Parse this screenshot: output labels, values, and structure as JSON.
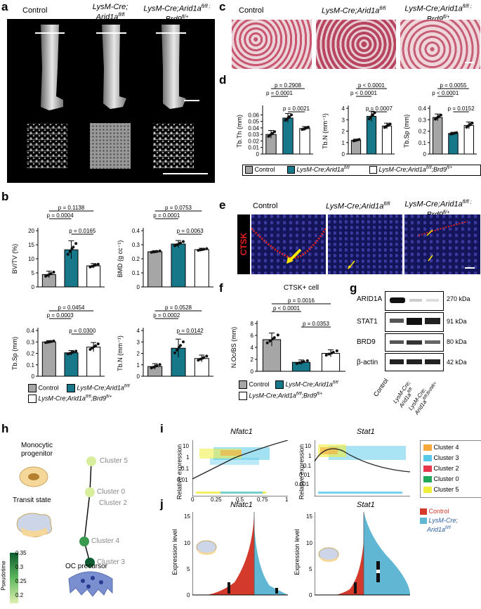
{
  "panels": {
    "a": "a",
    "b": "b",
    "c": "c",
    "d": "d",
    "e": "e",
    "f": "f",
    "g": "g",
    "h": "h",
    "i": "i",
    "j": "j"
  },
  "panel_a": {
    "groups": [
      "Control",
      "LysM-Cre; Arid1a",
      "LysM-Cre;Arid1a"
    ],
    "sup": [
      "fl/fl",
      "fl/fl ;",
      "fl/+"
    ],
    "brd": "Brd9"
  },
  "panel_c": {
    "groups": [
      "Control",
      "LysM-Cre;Arid1a",
      "LysM-Cre;Arid1a"
    ],
    "sup": [
      "fl/fl",
      "fl/fl ;",
      "fl/+"
    ],
    "brd": "Brd9"
  },
  "panel_e": {
    "groups": [
      "Control",
      "LysM-Cre;Arid1a",
      "LysM-Cre;Arid1a"
    ],
    "sup": [
      "fl/fl",
      "fl/fl ;",
      "fl/+"
    ],
    "brd": "Brd9",
    "stain": "CTSK"
  },
  "legend_bd": {
    "control": "Control",
    "ko": "LysM-Cre;Arid1a",
    "ko_sup": "fl/fl",
    "dko": "LysM-Cre;Arid1a",
    "dko_sup1": "fl/fl",
    "dko_mid": ";Brd9",
    "dko_sup2": "fl/+"
  },
  "colors": {
    "control": "#a6a6a6",
    "ko": "#17788a",
    "dko": "#ffffff",
    "pseudotime_high": "#0d5c2f",
    "pseudotime_low": "#dff0b0"
  },
  "chart_data": [
    {
      "id": "b-bvtv",
      "type": "bar",
      "categories": [
        "Control",
        "LysM-Cre;Arid1a fl/fl",
        "LysM-Cre;Arid1a fl/fl;Brd9 fl/+"
      ],
      "values": [
        4.4,
        13.2,
        7.5
      ],
      "errors": [
        1.2,
        3.2,
        0.8
      ],
      "ylabel": "BV/TV (%)",
      "ylim": [
        0,
        20
      ],
      "yticks": [
        0,
        5,
        10,
        15,
        20
      ],
      "pvalues": [
        {
          "from": 0,
          "to": 2,
          "label": "p = 0.1138"
        },
        {
          "from": 0,
          "to": 1,
          "label": "p = 0.0004"
        },
        {
          "from": 1,
          "to": 2,
          "label": "p = 0.0165"
        }
      ]
    },
    {
      "id": "b-bmd",
      "type": "bar",
      "categories": [
        "Control",
        "LysM-Cre;Arid1a fl/fl",
        "LysM-Cre;Arid1a fl/fl;Brd9 fl/+"
      ],
      "values": [
        0.25,
        0.305,
        0.265
      ],
      "errors": [
        0.008,
        0.025,
        0.01
      ],
      "ylabel": "BMD (g cc⁻¹)",
      "ylim": [
        0,
        0.4
      ],
      "yticks": [
        0,
        0.1,
        0.2,
        0.3,
        0.4
      ],
      "pvalues": [
        {
          "from": 0,
          "to": 2,
          "label": "p = 0.0753"
        },
        {
          "from": 0,
          "to": 1,
          "label": "p = 0.0001"
        },
        {
          "from": 1,
          "to": 2,
          "label": "p = 0.0063"
        }
      ]
    },
    {
      "id": "b-tbsp",
      "type": "bar",
      "categories": [
        "Control",
        "LysM-Cre;Arid1a fl/fl",
        "LysM-Cre;Arid1a fl/fl;Brd9 fl/+"
      ],
      "values": [
        0.3,
        0.205,
        0.255
      ],
      "errors": [
        0.012,
        0.02,
        0.04
      ],
      "ylabel": "Tb.Sp (mm)",
      "ylim": [
        0,
        0.4
      ],
      "yticks": [
        0,
        0.1,
        0.2,
        0.3,
        0.4
      ],
      "pvalues": [
        {
          "from": 0,
          "to": 2,
          "label": "p = 0.0454"
        },
        {
          "from": 0,
          "to": 1,
          "label": "p = 0.0003"
        },
        {
          "from": 1,
          "to": 2,
          "label": "p = 0.0300"
        }
      ]
    },
    {
      "id": "b-tbn",
      "type": "bar",
      "categories": [
        "Control",
        "LysM-Cre;Arid1a fl/fl",
        "LysM-Cre;Arid1a fl/fl;Brd9 fl/+"
      ],
      "values": [
        0.85,
        2.45,
        1.55
      ],
      "errors": [
        0.25,
        0.8,
        0.3
      ],
      "ylabel": "Tb.N (mm⁻¹)",
      "ylim": [
        0,
        4
      ],
      "yticks": [
        0,
        1,
        2,
        3,
        4
      ],
      "pvalues": [
        {
          "from": 0,
          "to": 2,
          "label": "p = 0.0528"
        },
        {
          "from": 0,
          "to": 1,
          "label": "p = 0.0002"
        },
        {
          "from": 1,
          "to": 2,
          "label": "p = 0.0142"
        }
      ]
    },
    {
      "id": "d-tbth",
      "type": "bar",
      "categories": [
        "Control",
        "LysM-Cre;Arid1a fl/fl",
        "LysM-Cre;Arid1a fl/fl;Brd9 fl/+"
      ],
      "values": [
        0.03,
        0.055,
        0.039
      ],
      "errors": [
        0.006,
        0.007,
        0.003
      ],
      "ylabel": "Tb.Th (mm)",
      "ylim": [
        0,
        0.07
      ],
      "yticks": [
        0,
        0.01,
        0.02,
        0.03,
        0.04,
        0.05,
        0.06
      ],
      "pvalues": [
        {
          "from": 0,
          "to": 2,
          "label": "p = 0.2908"
        },
        {
          "from": 0,
          "to": 1,
          "label": "p = 0.0001"
        },
        {
          "from": 1,
          "to": 2,
          "label": "p = 0.0021"
        }
      ]
    },
    {
      "id": "d-tbn",
      "type": "bar",
      "categories": [
        "Control",
        "LysM-Cre;Arid1a fl/fl",
        "LysM-Cre;Arid1a fl/fl;Brd9 fl/+"
      ],
      "values": [
        1.2,
        3.3,
        2.45
      ],
      "errors": [
        0.1,
        0.45,
        0.25
      ],
      "ylabel": "Tb.N (mm⁻¹)",
      "ylim": [
        0,
        4
      ],
      "yticks": [
        0,
        1,
        2,
        3,
        4
      ],
      "pvalues": [
        {
          "from": 0,
          "to": 2,
          "label": "p < 0.0001"
        },
        {
          "from": 0,
          "to": 1,
          "label": "p < 0.0001"
        },
        {
          "from": 1,
          "to": 2,
          "label": "p = 0.0007"
        }
      ]
    },
    {
      "id": "d-tbsp",
      "type": "bar",
      "categories": [
        "Control",
        "LysM-Cre;Arid1a fl/fl",
        "LysM-Cre;Arid1a fl/fl;Brd9 fl/+"
      ],
      "values": [
        0.32,
        0.18,
        0.25
      ],
      "errors": [
        0.03,
        0.01,
        0.03
      ],
      "ylabel": "Tb.Sp (mm)",
      "ylim": [
        0,
        0.4
      ],
      "yticks": [
        0,
        0.1,
        0.2,
        0.3,
        0.4
      ],
      "pvalues": [
        {
          "from": 0,
          "to": 2,
          "label": "p = 0.0055"
        },
        {
          "from": 0,
          "to": 1,
          "label": "p < 0.0001"
        },
        {
          "from": 1,
          "to": 2,
          "label": "p = 0.0152"
        }
      ]
    },
    {
      "id": "f-nocbs",
      "type": "bar",
      "title": "CTSK+ cell",
      "categories": [
        "Control",
        "LysM-Cre;Arid1a fl/fl",
        "LysM-Cre;Arid1a fl/fl;Brd9 fl/+"
      ],
      "values": [
        5.3,
        1.5,
        3.0
      ],
      "errors": [
        1.1,
        0.4,
        0.6
      ],
      "ylabel": "N.Oc/BS (mm)",
      "ylim": [
        0,
        8
      ],
      "yticks": [
        0,
        2,
        4,
        6,
        8
      ],
      "pvalues": [
        {
          "from": 0,
          "to": 2,
          "label": "p = 0.0016"
        },
        {
          "from": 0,
          "to": 1,
          "label": "p < 0.0001"
        },
        {
          "from": 1,
          "to": 2,
          "label": "p = 0.0353"
        }
      ]
    }
  ],
  "legend_f": {
    "control": "Control",
    "ko": "LysM-Cre;Arid1a",
    "ko_sup": "fl/fl",
    "dko": "LysM-Cre;Arid1a",
    "dko_sup1": "fl/fl",
    "dko_mid": ";Brd9",
    "dko_sup2": "fl/+"
  },
  "panel_g": {
    "rows": [
      {
        "name": "ARID1A",
        "kda": "270 kDa"
      },
      {
        "name": "STAT1",
        "kda": "91 kDa"
      },
      {
        "name": "BRD9",
        "kda": "80 kDa"
      },
      {
        "name": "β-actin",
        "kda": "42 kDa"
      }
    ],
    "lanes": [
      "Control",
      "LysM-Cre;\nArid1a",
      "LysM-Cre;\nArid1a"
    ],
    "lane_sup": [
      "",
      "fl/fl",
      "fl/fl;Brd9fl/+"
    ]
  },
  "panel_h": {
    "labels": {
      "mono": "Monocytic",
      "mono2": "progenitor",
      "transit": "Transit state",
      "ocp": "OC precursor"
    },
    "clusters": [
      "Cluster 5",
      "Cluster 0",
      "Cluster 2",
      "Cluster 4",
      "Cluster 3"
    ],
    "pseudotime_title": "Pseudotime",
    "pseudotime_ticks": [
      "0.35",
      "0.3",
      "0.25",
      "0.2"
    ]
  },
  "panel_i": {
    "titles": [
      "Nfatc1",
      "Stat1"
    ],
    "ylabel": "Relative expression",
    "yticks_left": [
      "10",
      "1",
      "0.1",
      "0.01"
    ],
    "yticks_right": [
      "10",
      "1",
      "0.1",
      "0.01",
      "0.001"
    ],
    "xticks": [
      "0",
      "0.25",
      "0.5",
      "0.75",
      "1"
    ],
    "legend": [
      {
        "name": "Cluster 4",
        "color": "#f5a93b"
      },
      {
        "name": "Cluster 3",
        "color": "#56c8e8"
      },
      {
        "name": "Cluster 2",
        "color": "#e8374a"
      },
      {
        "name": "Cluster 0",
        "color": "#22a85a"
      },
      {
        "name": "Cluster 5",
        "color": "#f0ee3c"
      }
    ]
  },
  "panel_j": {
    "titles": [
      "Nfatc1",
      "Stat1"
    ],
    "ylabel": "Expression level",
    "yticks": [
      "15",
      "10",
      "5",
      "0"
    ],
    "legend": {
      "control": "Control",
      "ko1": "LysM-Cre;",
      "ko2": "Arid1a",
      "ko_sup": "fl/fl"
    },
    "colors": {
      "control": "#d33a2c",
      "ko": "#5fb7d3"
    }
  }
}
